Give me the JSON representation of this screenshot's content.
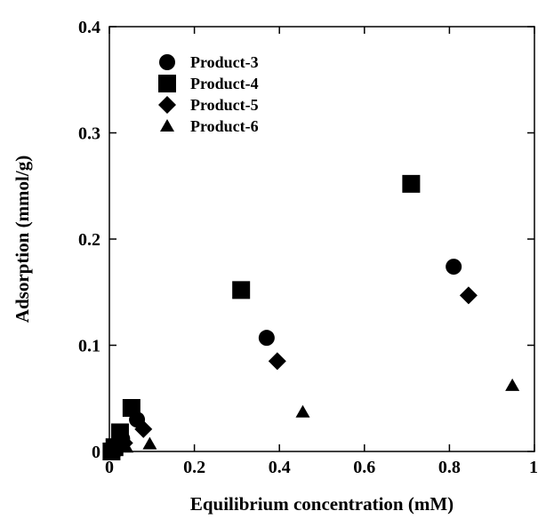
{
  "chart_data": {
    "type": "scatter",
    "xlabel": "Equilibrium concentration (mM)",
    "ylabel": "Adsorption (mmol/g)",
    "xlim": [
      0,
      1
    ],
    "ylim": [
      0,
      0.4
    ],
    "x_ticks": [
      "0",
      "0.2",
      "0.4",
      "0.6",
      "0.8",
      "1"
    ],
    "y_ticks": [
      "0",
      "0.1",
      "0.2",
      "0.3",
      "0.4"
    ],
    "x_tick_values": [
      0,
      0.2,
      0.4,
      0.6,
      0.8,
      1
    ],
    "y_tick_values": [
      0,
      0.1,
      0.2,
      0.3,
      0.4
    ],
    "grid": false,
    "legend_position": "top-left",
    "series": [
      {
        "name": "Product-3",
        "marker": "circle",
        "x": [
          0.005,
          0.015,
          0.03,
          0.065,
          0.37,
          0.81
        ],
        "y": [
          0.002,
          0.005,
          0.012,
          0.03,
          0.107,
          0.174
        ]
      },
      {
        "name": "Product-4",
        "marker": "square",
        "x": [
          0.005,
          0.012,
          0.025,
          0.052,
          0.31,
          0.71
        ],
        "y": [
          0.0,
          0.004,
          0.018,
          0.041,
          0.152,
          0.252
        ]
      },
      {
        "name": "Product-5",
        "marker": "diamond",
        "x": [
          0.008,
          0.018,
          0.035,
          0.08,
          0.395,
          0.845
        ],
        "y": [
          0.001,
          0.003,
          0.008,
          0.021,
          0.085,
          0.147
        ]
      },
      {
        "name": "Product-6",
        "marker": "triangle",
        "x": [
          0.01,
          0.04,
          0.095,
          0.455,
          0.948
        ],
        "y": [
          0.0,
          0.004,
          0.007,
          0.037,
          0.062
        ]
      }
    ]
  }
}
